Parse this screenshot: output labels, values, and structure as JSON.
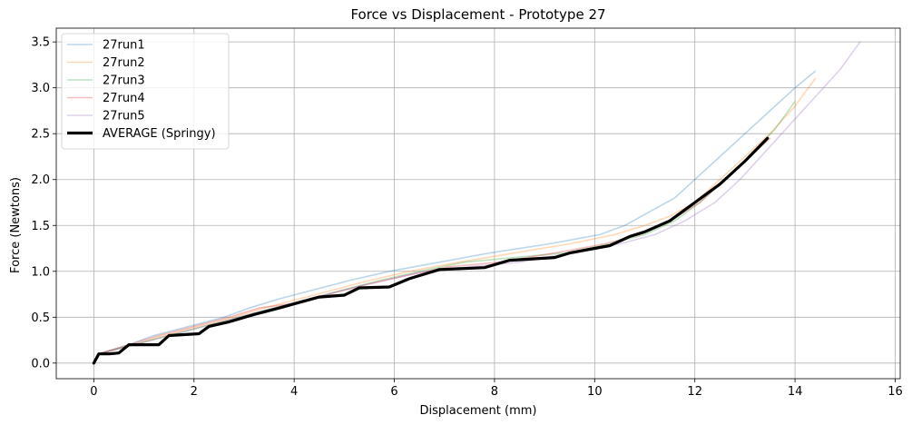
{
  "chart_data": {
    "type": "line",
    "title": "Force vs Displacement - Prototype 27",
    "xlabel": "Displacement (mm)",
    "ylabel": "Force (Newtons)",
    "xlim": [
      -0.75,
      16.1
    ],
    "ylim": [
      -0.17,
      3.65
    ],
    "xticks": [
      0,
      2,
      4,
      6,
      8,
      10,
      12,
      14,
      16
    ],
    "yticks": [
      0.0,
      0.5,
      1.0,
      1.5,
      2.0,
      2.5,
      3.0,
      3.5
    ],
    "xtick_labels": [
      "0",
      "2",
      "4",
      "6",
      "8",
      "10",
      "12",
      "14",
      "16"
    ],
    "ytick_labels": [
      "0.0",
      "0.5",
      "1.0",
      "1.5",
      "2.0",
      "2.5",
      "3.0",
      "3.5"
    ],
    "grid": true,
    "legend_position": "top-left",
    "series": [
      {
        "name": "27run1",
        "color": "#1f77b4",
        "opacity": 0.3,
        "x": [
          0,
          0.1,
          0.7,
          1.2,
          1.9,
          2.6,
          3.1,
          3.7,
          4.4,
          5.1,
          5.9,
          6.9,
          7.9,
          9.1,
          10.1,
          10.6,
          11.1,
          11.6,
          12.0,
          12.5,
          13.0,
          13.5,
          14.0,
          14.4
        ],
        "y": [
          0,
          0.1,
          0.2,
          0.3,
          0.4,
          0.5,
          0.6,
          0.7,
          0.8,
          0.9,
          1.0,
          1.1,
          1.2,
          1.3,
          1.4,
          1.5,
          1.65,
          1.8,
          2.0,
          2.25,
          2.5,
          2.75,
          3.0,
          3.18
        ]
      },
      {
        "name": "27run2",
        "color": "#ff7f0e",
        "opacity": 0.3,
        "x": [
          0,
          0.1,
          0.8,
          1.4,
          2.1,
          2.8,
          3.4,
          4.1,
          4.8,
          5.5,
          6.3,
          7.3,
          8.4,
          9.5,
          10.4,
          11.0,
          11.5,
          12.0,
          12.5,
          13.0,
          13.5,
          14.0,
          14.4
        ],
        "y": [
          0,
          0.1,
          0.2,
          0.3,
          0.4,
          0.5,
          0.6,
          0.7,
          0.8,
          0.9,
          1.0,
          1.1,
          1.2,
          1.3,
          1.4,
          1.5,
          1.6,
          1.75,
          2.0,
          2.25,
          2.5,
          2.8,
          3.1
        ]
      },
      {
        "name": "27run3",
        "color": "#2ca02c",
        "opacity": 0.3,
        "x": [
          0,
          0.1,
          0.8,
          1.5,
          2.2,
          2.9,
          3.6,
          4.3,
          5.0,
          5.7,
          6.5,
          7.4,
          8.4,
          9.4,
          10.3,
          11.0,
          11.6,
          12.1,
          12.6,
          13.1,
          13.6,
          14.0
        ],
        "y": [
          0,
          0.1,
          0.2,
          0.3,
          0.4,
          0.5,
          0.6,
          0.7,
          0.8,
          0.9,
          1.0,
          1.1,
          1.15,
          1.2,
          1.3,
          1.4,
          1.55,
          1.75,
          2.0,
          2.25,
          2.55,
          2.85
        ]
      },
      {
        "name": "27run4",
        "color": "#d62728",
        "opacity": 0.3,
        "x": [
          0,
          0.1,
          0.7,
          1.3,
          2.0,
          2.7,
          3.3,
          4.0,
          4.7,
          5.4,
          6.2,
          7.1,
          8.1,
          9.2,
          10.2,
          10.9,
          11.5,
          12.1,
          12.6,
          13.1,
          13.5
        ],
        "y": [
          0,
          0.1,
          0.2,
          0.3,
          0.4,
          0.5,
          0.6,
          0.65,
          0.75,
          0.85,
          0.95,
          1.05,
          1.1,
          1.2,
          1.3,
          1.4,
          1.55,
          1.75,
          2.0,
          2.25,
          2.45
        ]
      },
      {
        "name": "27run5",
        "color": "#9467bd",
        "opacity": 0.3,
        "x": [
          0,
          0.1,
          0.8,
          1.5,
          2.2,
          2.9,
          3.6,
          4.3,
          5.0,
          5.8,
          6.6,
          7.5,
          8.5,
          9.5,
          10.5,
          11.2,
          11.8,
          12.4,
          12.9,
          13.4,
          13.9,
          14.4,
          14.9,
          15.3
        ],
        "y": [
          0,
          0.1,
          0.2,
          0.3,
          0.4,
          0.5,
          0.6,
          0.7,
          0.8,
          0.9,
          1.0,
          1.05,
          1.1,
          1.2,
          1.3,
          1.4,
          1.55,
          1.75,
          2.0,
          2.3,
          2.6,
          2.9,
          3.2,
          3.5
        ]
      },
      {
        "name": "AVERAGE (Springy)",
        "color": "#000000",
        "opacity": 1,
        "bold": true,
        "x": [
          0,
          0.1,
          0.3,
          0.5,
          0.7,
          1.3,
          1.5,
          2.1,
          2.3,
          2.7,
          3.2,
          3.7,
          4.1,
          4.5,
          5.0,
          5.3,
          5.9,
          6.3,
          6.9,
          7.8,
          8.3,
          9.2,
          9.5,
          10.0,
          10.3,
          10.7,
          11.0,
          11.5,
          12.0,
          12.5,
          13.0,
          13.45
        ],
        "y": [
          0,
          0.1,
          0.1,
          0.11,
          0.2,
          0.2,
          0.3,
          0.32,
          0.4,
          0.45,
          0.53,
          0.6,
          0.66,
          0.72,
          0.74,
          0.82,
          0.83,
          0.92,
          1.02,
          1.04,
          1.12,
          1.15,
          1.2,
          1.25,
          1.28,
          1.38,
          1.43,
          1.55,
          1.75,
          1.95,
          2.2,
          2.45
        ]
      }
    ]
  }
}
